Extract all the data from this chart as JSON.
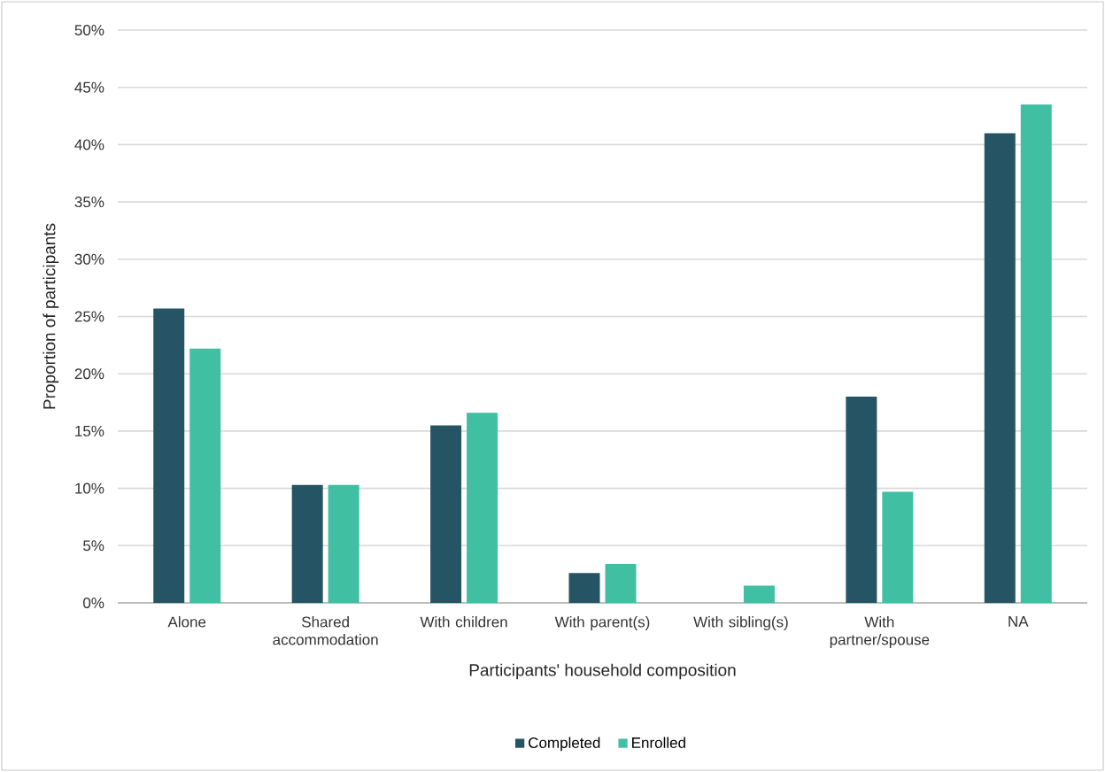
{
  "chart_data": {
    "type": "bar",
    "xlabel": "Participants' household composition",
    "ylabel": "Proportion of participants",
    "categories": [
      "Alone",
      "Shared accommodation",
      "With children",
      "With parent(s)",
      "With sibling(s)",
      "With partner/spouse",
      "NA"
    ],
    "series": [
      {
        "name": "Completed",
        "color": "#255464",
        "values": [
          25.7,
          10.3,
          15.5,
          2.6,
          0,
          18.0,
          41.0
        ]
      },
      {
        "name": "Enrolled",
        "color": "#40bfa3",
        "values": [
          22.2,
          10.3,
          16.6,
          3.4,
          1.5,
          9.7,
          43.5
        ]
      }
    ],
    "ylim": [
      0,
      50
    ],
    "yticks": [
      {
        "value": 0,
        "label": "0%"
      },
      {
        "value": 5,
        "label": "5%"
      },
      {
        "value": 10,
        "label": "10%"
      },
      {
        "value": 15,
        "label": "15%"
      },
      {
        "value": 20,
        "label": "20%"
      },
      {
        "value": 25,
        "label": "25%"
      },
      {
        "value": 30,
        "label": "30%"
      },
      {
        "value": 35,
        "label": "35%"
      },
      {
        "value": 40,
        "label": "40%"
      },
      {
        "value": 45,
        "label": "45%"
      },
      {
        "value": 50,
        "label": "50%"
      }
    ],
    "grid": "y",
    "legend": "bottom"
  }
}
